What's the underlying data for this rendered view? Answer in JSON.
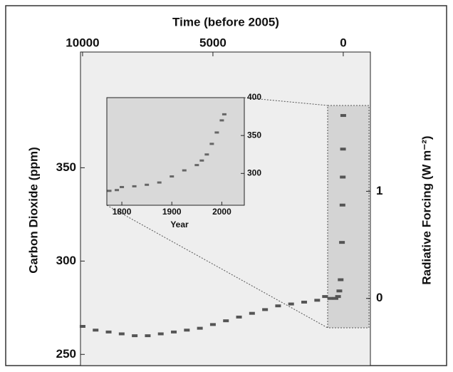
{
  "chart_data": [
    {
      "type": "scatter",
      "xlabel": "Time (before 2005)",
      "ylabel": "Carbon Dioxide (ppm)",
      "y2label": "Radiative Forcing (W m⁻²)",
      "x": [
        10000,
        9500,
        9000,
        8500,
        8000,
        7500,
        7000,
        6500,
        6000,
        5500,
        5000,
        4500,
        4000,
        3500,
        3000,
        2500,
        2000,
        1500,
        1000,
        700,
        500,
        300,
        200,
        150,
        100,
        50,
        30,
        20,
        10,
        0
      ],
      "values": [
        265,
        263,
        262,
        261,
        260,
        260,
        261,
        262,
        263,
        264,
        266,
        268,
        270,
        272,
        274,
        276,
        277,
        278,
        279,
        281,
        280,
        280,
        281,
        284,
        290,
        310,
        330,
        345,
        360,
        378
      ],
      "color": "#555555",
      "xlim": [
        10080,
        -1040
      ],
      "xticks": [
        10000,
        5000,
        0
      ],
      "xaxis_side": "top",
      "ylim": [
        244,
        412
      ],
      "yticks": [
        250,
        300,
        350
      ],
      "yaxis_side": "left",
      "y2lim": [
        -0.627,
        2.3
      ],
      "y2ticks": [
        0,
        1
      ]
    },
    {
      "type": "scatter",
      "xlabel": "Year",
      "x": [
        1775,
        1790,
        1800,
        1825,
        1850,
        1875,
        1900,
        1925,
        1950,
        1960,
        1970,
        1980,
        1990,
        2000,
        2005
      ],
      "values": [
        277,
        278,
        282,
        283,
        285,
        288,
        296,
        304,
        311,
        317,
        325,
        339,
        354,
        370,
        378
      ],
      "color": "#666666",
      "xlim": [
        1770,
        2045
      ],
      "xticks": [
        1800,
        1900,
        2000
      ],
      "xaxis_side": "bottom",
      "ylim": [
        258,
        400
      ],
      "yticks": [
        300,
        350,
        400
      ],
      "yaxis_side": "right"
    }
  ]
}
